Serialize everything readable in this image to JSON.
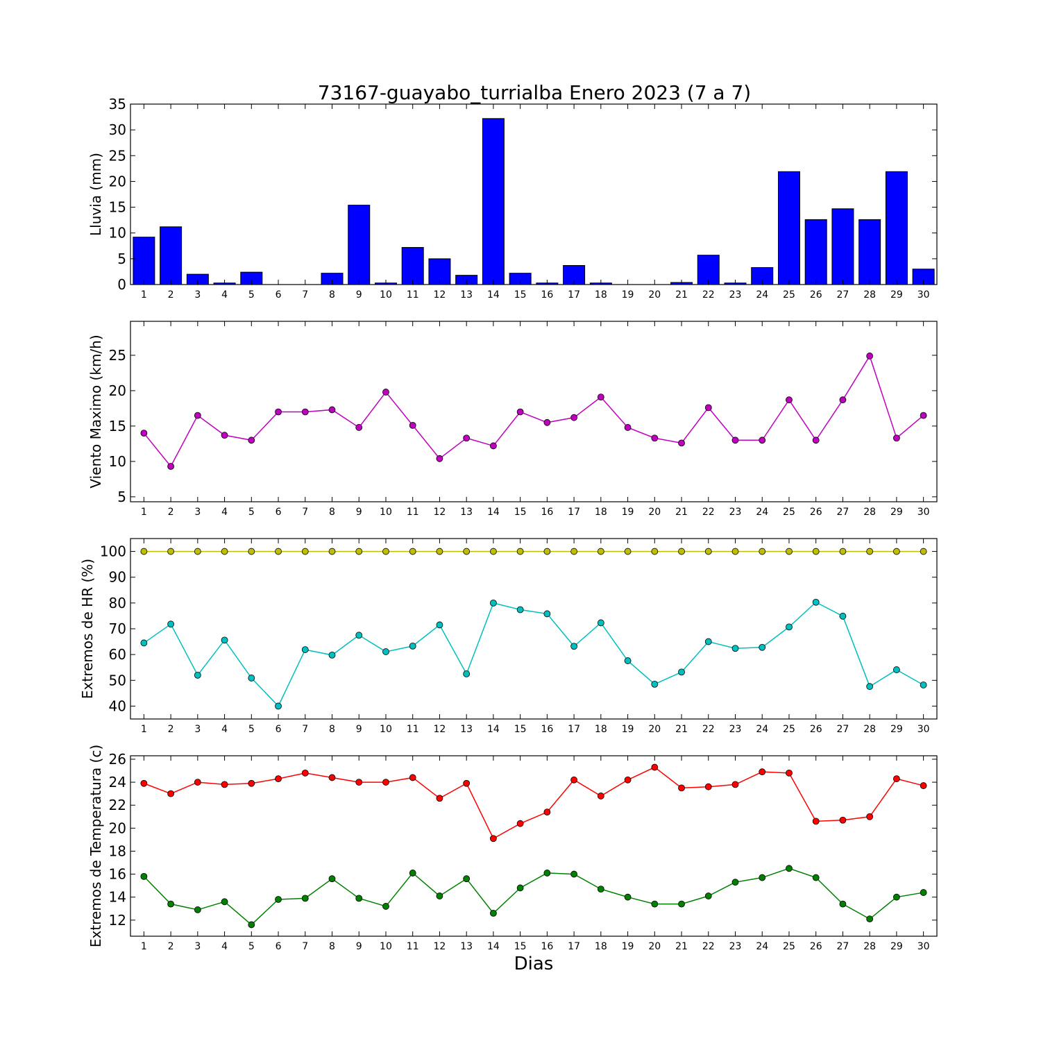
{
  "figure": {
    "title": "73167-guayabo_turrialba Enero 2023  (7 a 7)",
    "xlabel": "Dias"
  },
  "chart_data": [
    {
      "type": "bar",
      "ylabel": "Lluvia (mm)",
      "ylim": [
        0,
        35
      ],
      "yticks": [
        0,
        5,
        10,
        15,
        20,
        25,
        30,
        35
      ],
      "x": [
        1,
        2,
        3,
        4,
        5,
        6,
        7,
        8,
        9,
        10,
        11,
        12,
        13,
        14,
        15,
        16,
        17,
        18,
        19,
        20,
        21,
        22,
        23,
        24,
        25,
        26,
        27,
        28,
        29,
        30
      ],
      "xlim": [
        0.5,
        30.5
      ],
      "series": [
        {
          "color": "#0000ff",
          "values": [
            9.2,
            11.2,
            2.0,
            0.3,
            2.4,
            0.0,
            0.0,
            2.2,
            15.4,
            0.3,
            7.2,
            5.0,
            1.8,
            32.2,
            2.2,
            0.3,
            3.7,
            0.3,
            0.0,
            0.0,
            0.4,
            5.7,
            0.3,
            3.3,
            21.9,
            12.6,
            14.7,
            12.6,
            21.9,
            3.0
          ]
        }
      ],
      "grid": false
    },
    {
      "type": "line",
      "ylabel": "Viento Maximo (km/h)",
      "ylim": [
        4.3,
        29.8
      ],
      "yticks": [
        5,
        10,
        15,
        20,
        25
      ],
      "x": [
        1,
        2,
        3,
        4,
        5,
        6,
        7,
        8,
        9,
        10,
        11,
        12,
        13,
        14,
        15,
        16,
        17,
        18,
        19,
        20,
        21,
        22,
        23,
        24,
        25,
        26,
        27,
        28,
        29,
        30
      ],
      "xlim": [
        0.5,
        30.5
      ],
      "series": [
        {
          "color": "#bf00bf",
          "values": [
            14.0,
            9.3,
            16.5,
            13.7,
            13.0,
            17.0,
            17.0,
            17.3,
            14.8,
            19.8,
            15.1,
            10.4,
            13.3,
            12.2,
            17.0,
            15.5,
            16.2,
            19.1,
            14.8,
            13.3,
            12.6,
            17.6,
            13.0,
            13.0,
            18.7,
            13.0,
            18.7,
            24.9,
            13.3,
            16.5
          ]
        }
      ],
      "grid": false
    },
    {
      "type": "line",
      "ylabel": "Extremos de HR (%)",
      "ylim": [
        35,
        105
      ],
      "yticks": [
        40,
        50,
        60,
        70,
        80,
        90,
        100
      ],
      "x": [
        1,
        2,
        3,
        4,
        5,
        6,
        7,
        8,
        9,
        10,
        11,
        12,
        13,
        14,
        15,
        16,
        17,
        18,
        19,
        20,
        21,
        22,
        23,
        24,
        25,
        26,
        27,
        28,
        29,
        30
      ],
      "xlim": [
        0.5,
        30.5
      ],
      "series": [
        {
          "color": "#bfbf00",
          "values": [
            100,
            100,
            100,
            100,
            100,
            100,
            100,
            100,
            100,
            100,
            100,
            100,
            100,
            100,
            100,
            100,
            100,
            100,
            100,
            100,
            100,
            100,
            100,
            100,
            100,
            100,
            100,
            100,
            100,
            100
          ]
        },
        {
          "color": "#00bfbf",
          "values": [
            64.5,
            71.8,
            52.0,
            65.6,
            50.9,
            40.0,
            61.9,
            59.8,
            67.5,
            61.1,
            63.3,
            71.5,
            52.5,
            80.0,
            77.4,
            75.8,
            63.2,
            72.3,
            57.6,
            48.5,
            53.2,
            65.0,
            62.4,
            62.8,
            70.7,
            80.3,
            74.9,
            47.6,
            54.1,
            48.2
          ]
        }
      ],
      "grid": false
    },
    {
      "type": "line",
      "ylabel": "Extremos de Temperatura (c)",
      "ylim": [
        10.6,
        26.3
      ],
      "yticks": [
        12,
        14,
        16,
        18,
        20,
        22,
        24,
        26
      ],
      "x": [
        1,
        2,
        3,
        4,
        5,
        6,
        7,
        8,
        9,
        10,
        11,
        12,
        13,
        14,
        15,
        16,
        17,
        18,
        19,
        20,
        21,
        22,
        23,
        24,
        25,
        26,
        27,
        28,
        29,
        30
      ],
      "xlim": [
        0.5,
        30.5
      ],
      "series": [
        {
          "color": "#ff0000",
          "values": [
            23.9,
            23.0,
            24.0,
            23.8,
            23.9,
            24.3,
            24.8,
            24.4,
            24.0,
            24.0,
            24.4,
            22.6,
            23.9,
            19.1,
            20.4,
            21.4,
            24.2,
            22.8,
            24.2,
            25.3,
            23.5,
            23.6,
            23.8,
            24.9,
            24.8,
            20.6,
            20.7,
            21.0,
            24.3,
            23.7
          ]
        },
        {
          "color": "#008000",
          "values": [
            15.8,
            13.4,
            12.9,
            13.6,
            11.6,
            13.8,
            13.9,
            15.6,
            13.9,
            13.2,
            16.1,
            14.1,
            15.6,
            12.6,
            14.8,
            16.1,
            16.0,
            14.7,
            14.0,
            13.4,
            13.4,
            14.1,
            15.3,
            15.7,
            16.5,
            15.7,
            13.4,
            12.1,
            14.0,
            14.4
          ]
        }
      ],
      "grid": false
    }
  ]
}
